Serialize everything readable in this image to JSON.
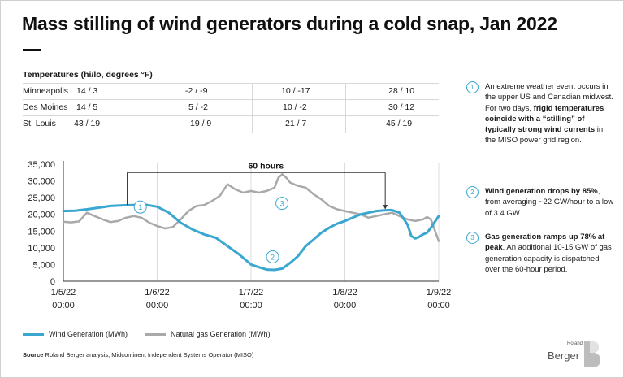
{
  "title": "Mass stilling of wind generators during a cold snap, Jan 2022",
  "temperatures": {
    "heading": "Temperatures (hi/lo, degrees °F)",
    "rows": [
      {
        "city": "Minneapolis",
        "values": [
          "14 / 3",
          "-2 / -9",
          "10 / -17",
          "28 / 10"
        ]
      },
      {
        "city": "Des Moines",
        "values": [
          "14 / 5",
          "5 / -2",
          "10 / -2",
          "30 / 12"
        ]
      },
      {
        "city": "St. Louis",
        "values": [
          "43 / 19",
          "19 / 9",
          "21 / 7",
          "45 / 19"
        ]
      }
    ]
  },
  "annotation_60h": "60 hours",
  "chart_data": {
    "type": "line",
    "title": "",
    "xlabel": "",
    "ylabel": "",
    "x_tick_labels": [
      {
        "date": "1/5/22",
        "time": "00:00"
      },
      {
        "date": "1/6/22",
        "time": "00:00"
      },
      {
        "date": "1/7/22",
        "time": "00:00"
      },
      {
        "date": "1/8/22",
        "time": "00:00"
      },
      {
        "date": "1/9/22",
        "time": "00:00"
      }
    ],
    "x_range_days": [
      0,
      4
    ],
    "ylim": [
      0,
      35000
    ],
    "y_ticks": [
      "0",
      "5,000",
      "10,000",
      "15,000",
      "20,000",
      "25,000",
      "30,000",
      "35,000"
    ],
    "y_tick_values": [
      0,
      5000,
      10000,
      15000,
      20000,
      25000,
      30000,
      35000
    ],
    "grid": "vertical gridlines at day boundaries",
    "legend_position": "bottom-left",
    "series": [
      {
        "name": "Wind Generation (MWh)",
        "color": "#3aa7d0",
        "points": [
          [
            0,
            21000
          ],
          [
            0.125,
            21100
          ],
          [
            0.25,
            21500
          ],
          [
            0.375,
            22000
          ],
          [
            0.5,
            22500
          ],
          [
            0.625,
            22700
          ],
          [
            0.75,
            22800
          ],
          [
            0.875,
            22900
          ],
          [
            1,
            22300
          ],
          [
            1.125,
            20500
          ],
          [
            1.25,
            17500
          ],
          [
            1.375,
            15500
          ],
          [
            1.5,
            14000
          ],
          [
            1.625,
            13000
          ],
          [
            1.75,
            10500
          ],
          [
            1.875,
            8000
          ],
          [
            2,
            5000
          ],
          [
            2.083,
            4200
          ],
          [
            2.167,
            3500
          ],
          [
            2.25,
            3400
          ],
          [
            2.333,
            3800
          ],
          [
            2.417,
            5500
          ],
          [
            2.5,
            7500
          ],
          [
            2.583,
            10500
          ],
          [
            2.667,
            12500
          ],
          [
            2.75,
            14500
          ],
          [
            2.833,
            16000
          ],
          [
            2.917,
            17200
          ],
          [
            3,
            18000
          ],
          [
            3.083,
            19000
          ],
          [
            3.167,
            20000
          ],
          [
            3.25,
            20500
          ],
          [
            3.333,
            21000
          ],
          [
            3.417,
            21200
          ],
          [
            3.5,
            21300
          ],
          [
            3.583,
            20500
          ],
          [
            3.667,
            17000
          ],
          [
            3.708,
            13500
          ],
          [
            3.75,
            12800
          ],
          [
            3.792,
            13300
          ],
          [
            3.833,
            14000
          ],
          [
            3.875,
            14500
          ],
          [
            3.917,
            16000
          ],
          [
            4,
            19500
          ]
        ]
      },
      {
        "name": "Natural gas Generation (MWh)",
        "color": "#a9a9a9",
        "points": [
          [
            0,
            17800
          ],
          [
            0.083,
            17600
          ],
          [
            0.167,
            17900
          ],
          [
            0.25,
            20500
          ],
          [
            0.333,
            19500
          ],
          [
            0.417,
            18500
          ],
          [
            0.5,
            17700
          ],
          [
            0.583,
            18000
          ],
          [
            0.667,
            19000
          ],
          [
            0.75,
            19500
          ],
          [
            0.833,
            19000
          ],
          [
            0.917,
            17500
          ],
          [
            1,
            16500
          ],
          [
            1.083,
            15800
          ],
          [
            1.167,
            16200
          ],
          [
            1.25,
            18500
          ],
          [
            1.333,
            21000
          ],
          [
            1.417,
            22500
          ],
          [
            1.5,
            22800
          ],
          [
            1.583,
            24000
          ],
          [
            1.667,
            25500
          ],
          [
            1.75,
            29000
          ],
          [
            1.833,
            27500
          ],
          [
            1.917,
            26500
          ],
          [
            2,
            27000
          ],
          [
            2.083,
            26500
          ],
          [
            2.167,
            27000
          ],
          [
            2.25,
            28000
          ],
          [
            2.292,
            31000
          ],
          [
            2.333,
            32000
          ],
          [
            2.375,
            31000
          ],
          [
            2.417,
            29500
          ],
          [
            2.5,
            28500
          ],
          [
            2.583,
            28000
          ],
          [
            2.667,
            26000
          ],
          [
            2.75,
            24500
          ],
          [
            2.833,
            22500
          ],
          [
            2.917,
            21500
          ],
          [
            3,
            21000
          ],
          [
            3.083,
            20500
          ],
          [
            3.167,
            20000
          ],
          [
            3.25,
            19000
          ],
          [
            3.333,
            19500
          ],
          [
            3.417,
            20000
          ],
          [
            3.5,
            20500
          ],
          [
            3.583,
            19500
          ],
          [
            3.667,
            18500
          ],
          [
            3.75,
            18000
          ],
          [
            3.833,
            18500
          ],
          [
            3.875,
            19200
          ],
          [
            3.917,
            18500
          ],
          [
            4,
            12000
          ]
        ]
      }
    ],
    "callouts": [
      {
        "number": "1",
        "x": 0.82,
        "y": 22200
      },
      {
        "number": "2",
        "x": 2.23,
        "y": 7300
      },
      {
        "number": "3",
        "x": 2.33,
        "y": 23300
      }
    ],
    "bracket": {
      "label": "60 hours",
      "x_start": 0.68,
      "x_end": 3.43,
      "y": 32500
    }
  },
  "notes": [
    {
      "number": "1",
      "text": "An extreme weather event occurs in the upper US and Canadian midwest. For two days, ",
      "bold": "frigid temperatures coincide with a “stilling” of typically strong wind currents",
      "after": " in the MISO power grid region."
    },
    {
      "number": "2",
      "text": "",
      "bold": "Wind generation drops by 85%",
      "after": ", from averaging ~22 GW/hour to a low of 3.4 GW."
    },
    {
      "number": "3",
      "text": "",
      "bold": "Gas generation ramps up 78% at peak",
      "after": ". An additional 10-15 GW of gas generation capacity is dispatched over the 60-hour period."
    }
  ],
  "legend": {
    "wind": "Wind Generation (MWh)",
    "gas": "Natural gas Generation (MWh)"
  },
  "source": {
    "label": "Source",
    "text": "Roland Berger analysis, Midcontinent Independent Systems Operator (MISO)"
  },
  "brand": {
    "small": "Roland",
    "big": "Berger"
  },
  "colors": {
    "wind": "#3aa7d0",
    "gas": "#a9a9a9",
    "accent": "#3aa7d0"
  }
}
